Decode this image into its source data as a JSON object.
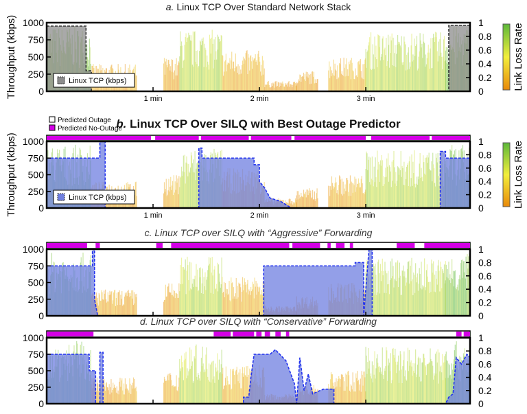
{
  "chart_data": [
    {
      "id": "a",
      "type": "area",
      "title_prefix": "a.",
      "title": "Linux TCP Over Standard Network Stack",
      "ylabel": "Throughput (kbps)",
      "y2label": "Link Loss Rate",
      "ylim": [
        0,
        1000
      ],
      "y2lim": [
        0,
        1
      ],
      "yticks": [
        "0",
        "250",
        "500",
        "750",
        "1000"
      ],
      "y2ticks": [
        "0",
        "0.2",
        "0.4",
        "0.6",
        "0.8",
        "1"
      ],
      "xticks": [
        {
          "t": 1,
          "label": "1 min"
        },
        {
          "t": 2,
          "label": "2 min"
        },
        {
          "t": 3,
          "label": "3 min"
        }
      ],
      "legend": "Linux TCP (kbps)",
      "color": "#8c8c8c",
      "throughput": [
        [
          0,
          950
        ],
        [
          0.37,
          950
        ],
        [
          0.37,
          300
        ],
        [
          0.42,
          300
        ],
        [
          0.42,
          0
        ],
        [
          3.78,
          0
        ],
        [
          3.78,
          960
        ],
        [
          3.98,
          960
        ]
      ],
      "outage_bar": null
    },
    {
      "id": "b",
      "type": "area",
      "title_prefix": "b.",
      "title": "Linux TCP Over SILQ with Best Outage Predictor",
      "ylabel": "Throughput (kbps)",
      "y2label": "Link Loss Rate",
      "ylim": [
        0,
        1000
      ],
      "y2lim": [
        0,
        1
      ],
      "yticks": [
        "0",
        "250",
        "500",
        "750",
        "1000"
      ],
      "y2ticks": [
        "0",
        "0.2",
        "0.4",
        "0.6",
        "0.8",
        "1"
      ],
      "xticks": [
        {
          "t": 1,
          "label": "1 min"
        },
        {
          "t": 2,
          "label": "2 min"
        },
        {
          "t": 3,
          "label": "3 min"
        }
      ],
      "legend": "Linux TCP (kbps)",
      "color": "#6f7fe0",
      "throughput": [
        [
          0,
          750
        ],
        [
          0.5,
          750
        ],
        [
          0.5,
          1000
        ],
        [
          0.55,
          1000
        ],
        [
          0.55,
          0
        ],
        [
          1.43,
          0
        ],
        [
          1.43,
          900
        ],
        [
          1.46,
          900
        ],
        [
          1.46,
          750
        ],
        [
          1.95,
          750
        ],
        [
          1.95,
          650
        ],
        [
          2.0,
          650
        ],
        [
          2.0,
          400
        ],
        [
          2.05,
          300
        ],
        [
          2.1,
          150
        ],
        [
          2.2,
          100
        ],
        [
          2.25,
          50
        ],
        [
          2.3,
          0
        ],
        [
          3.7,
          0
        ],
        [
          3.7,
          850
        ],
        [
          3.75,
          850
        ],
        [
          3.75,
          750
        ],
        [
          3.98,
          750
        ]
      ],
      "outage_bar": [
        [
          0,
          0.98
        ],
        [
          1.02,
          1.43
        ],
        [
          1.45,
          1.9
        ],
        [
          1.92,
          2.3
        ],
        [
          2.33,
          3.0
        ],
        [
          3.05,
          3.6
        ],
        [
          3.62,
          3.98
        ]
      ]
    },
    {
      "id": "c",
      "type": "area",
      "title_prefix": "c.",
      "title": "Linux TCP over SILQ with “Aggressive” Forwarding",
      "ylim": [
        0,
        1000
      ],
      "y2lim": [
        0,
        1
      ],
      "yticks": [
        "0",
        "250",
        "500",
        "750",
        "1000"
      ],
      "y2ticks": [
        "0",
        "0.2",
        "0.4",
        "0.6",
        "0.8",
        "1"
      ],
      "xticks": [],
      "color": "#6f7fe0",
      "throughput": [
        [
          0,
          750
        ],
        [
          0.43,
          750
        ],
        [
          0.43,
          1000
        ],
        [
          0.45,
          1000
        ],
        [
          0.45,
          250
        ],
        [
          0.48,
          0
        ],
        [
          2.04,
          0
        ],
        [
          2.04,
          750
        ],
        [
          2.9,
          750
        ],
        [
          2.9,
          800
        ],
        [
          2.98,
          800
        ],
        [
          2.98,
          0
        ],
        [
          3.03,
          1000
        ],
        [
          3.06,
          1000
        ],
        [
          3.06,
          0
        ],
        [
          3.98,
          0
        ]
      ],
      "outage_bar": [
        [
          0,
          0.38
        ],
        [
          0.46,
          0.5
        ],
        [
          1.03,
          1.09
        ],
        [
          1.17,
          2.28
        ],
        [
          2.31,
          2.57
        ],
        [
          2.64,
          2.67
        ],
        [
          2.72,
          2.8
        ],
        [
          2.85,
          2.88
        ],
        [
          3.29,
          3.46
        ],
        [
          3.55,
          3.98
        ]
      ]
    },
    {
      "id": "d",
      "type": "area",
      "title_prefix": "d.",
      "title": "Linux TCP over SILQ with “Conservative” Forwarding",
      "ylim": [
        0,
        1000
      ],
      "y2lim": [
        0,
        1
      ],
      "yticks": [
        "0",
        "250",
        "500",
        "750",
        "1000"
      ],
      "y2ticks": [
        "0",
        "0.2",
        "0.4",
        "0.6",
        "0.8",
        "1"
      ],
      "xticks": [],
      "color": "#6f7fe0",
      "throughput": [
        [
          0,
          750
        ],
        [
          0.4,
          750
        ],
        [
          0.4,
          500
        ],
        [
          0.46,
          500
        ],
        [
          0.46,
          0
        ],
        [
          0.5,
          0
        ],
        [
          0.5,
          780
        ],
        [
          0.53,
          780
        ],
        [
          0.53,
          0
        ],
        [
          1.85,
          0
        ],
        [
          1.85,
          100
        ],
        [
          1.9,
          100
        ],
        [
          1.92,
          400
        ],
        [
          1.95,
          750
        ],
        [
          2.1,
          750
        ],
        [
          2.15,
          820
        ],
        [
          2.25,
          650
        ],
        [
          2.33,
          300
        ],
        [
          2.35,
          0
        ],
        [
          2.38,
          700
        ],
        [
          2.42,
          200
        ],
        [
          2.46,
          450
        ],
        [
          2.5,
          150
        ],
        [
          2.6,
          220
        ],
        [
          2.7,
          220
        ],
        [
          2.7,
          0
        ],
        [
          3.75,
          0
        ],
        [
          3.78,
          100
        ],
        [
          3.82,
          150
        ],
        [
          3.85,
          700
        ],
        [
          3.9,
          600
        ],
        [
          3.95,
          750
        ],
        [
          3.98,
          700
        ]
      ],
      "outage_bar": [
        [
          0,
          0.44
        ],
        [
          1.57,
          1.73
        ],
        [
          1.75,
          1.95
        ],
        [
          1.97,
          2.02
        ],
        [
          2.05,
          2.1
        ],
        [
          2.15,
          2.2
        ],
        [
          2.25,
          2.28
        ],
        [
          3.85,
          3.9
        ],
        [
          3.92,
          3.98
        ]
      ]
    }
  ],
  "link_profile": [
    [
      0,
      0.42,
      950,
      0.9
    ],
    [
      0.42,
      0.85,
      400,
      0.15
    ],
    [
      0.85,
      1.1,
      0,
      0
    ],
    [
      1.1,
      1.25,
      500,
      0.15
    ],
    [
      1.25,
      1.65,
      900,
      0.7
    ],
    [
      1.65,
      2.05,
      600,
      0.2
    ],
    [
      2.05,
      2.35,
      150,
      0.1
    ],
    [
      2.35,
      2.55,
      300,
      0.1
    ],
    [
      2.55,
      2.65,
      0,
      0
    ],
    [
      2.65,
      3.0,
      500,
      0.2
    ],
    [
      3.0,
      3.75,
      870,
      0.7
    ],
    [
      3.75,
      3.98,
      950,
      0.9
    ]
  ],
  "outage_legend": {
    "outage": "Predicted Outage",
    "no_outage": "Predicted No-Outage",
    "no_outage_color": "#d400e6"
  },
  "colorbar": {
    "low": "#e8890a",
    "mid": "#f2ee3c",
    "high": "#5cb83a"
  }
}
